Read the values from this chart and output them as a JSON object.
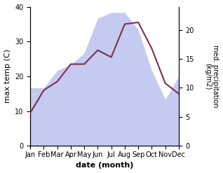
{
  "months": [
    "Jan",
    "Feb",
    "Mar",
    "Apr",
    "May",
    "Jun",
    "Jul",
    "Aug",
    "Sep",
    "Oct",
    "Nov",
    "Dec"
  ],
  "month_positions": [
    0,
    1,
    2,
    3,
    4,
    5,
    6,
    7,
    8,
    9,
    10,
    11
  ],
  "max_temp": [
    9.5,
    16.0,
    18.5,
    23.5,
    23.5,
    27.5,
    25.5,
    35.0,
    35.5,
    28.0,
    18.0,
    15.0
  ],
  "precipitation": [
    10,
    10,
    13,
    14,
    16,
    22,
    23,
    23,
    20,
    13,
    8,
    12
  ],
  "temp_color": "#7b3050",
  "precip_fill_color": "#c5caf0",
  "temp_ylim": [
    0,
    40
  ],
  "precip_ylim": [
    0,
    24
  ],
  "precip_yticks": [
    0,
    5,
    10,
    15,
    20
  ],
  "temp_yticks": [
    0,
    10,
    20,
    30,
    40
  ],
  "xlabel": "date (month)",
  "ylabel_left": "max temp (C)",
  "ylabel_right": "med. precipitation\n(kg/m2)",
  "bg_color": "#ffffff"
}
